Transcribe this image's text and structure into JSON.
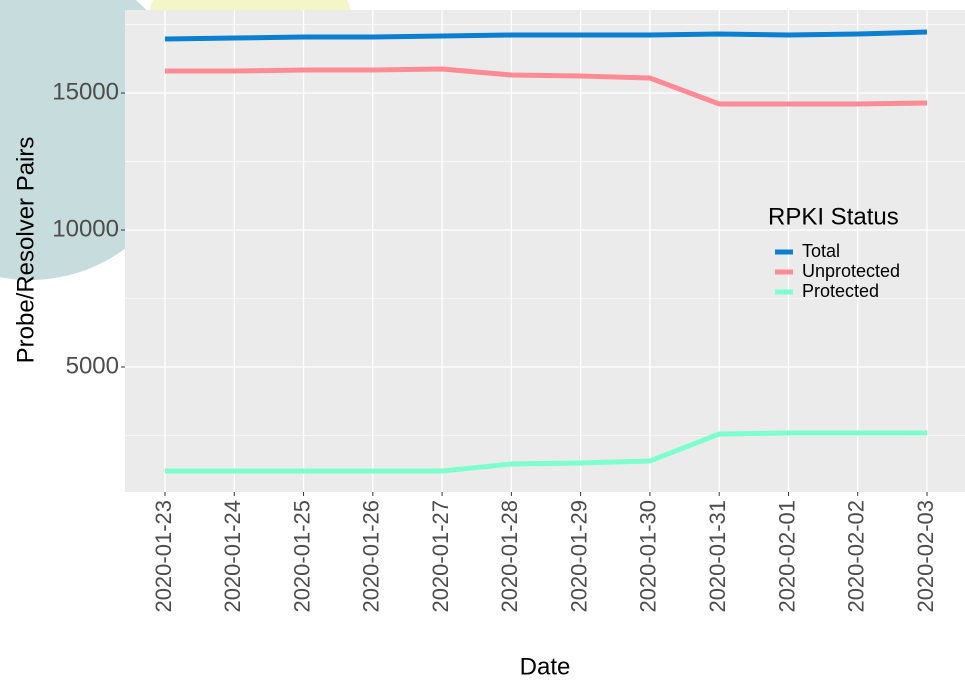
{
  "chart_data": {
    "type": "line",
    "x_label": "Date",
    "y_label": "Probe/Resolver Pairs",
    "categories": [
      "2020-01-23",
      "2020-01-24",
      "2020-01-25",
      "2020-01-26",
      "2020-01-27",
      "2020-01-28",
      "2020-01-29",
      "2020-01-30",
      "2020-01-31",
      "2020-02-01",
      "2020-02-02",
      "2020-02-03"
    ],
    "series": [
      {
        "name": "Total",
        "color": "#0b7fd0",
        "values": [
          16971,
          17007,
          17044,
          17044,
          17080,
          17117,
          17117,
          17117,
          17153,
          17117,
          17153,
          17226
        ]
      },
      {
        "name": "Unprotected",
        "color": "#ff8c94",
        "values": [
          15803,
          15803,
          15839,
          15839,
          15876,
          15657,
          15620,
          15547,
          14599,
          14599,
          14599,
          14635
        ]
      },
      {
        "name": "Protected",
        "color": "#7dffcf",
        "values": [
          1204,
          1204,
          1204,
          1204,
          1204,
          1460,
          1496,
          1569,
          2555,
          2591,
          2591,
          2591
        ]
      }
    ],
    "legend_title": "RPKI Status",
    "legend_position": "right",
    "ylim": [
      438,
      18030
    ],
    "yticks": [
      5000,
      10000,
      15000
    ],
    "minor_yticks": [
      2500,
      7500,
      12500,
      17500
    ],
    "grid": true
  }
}
